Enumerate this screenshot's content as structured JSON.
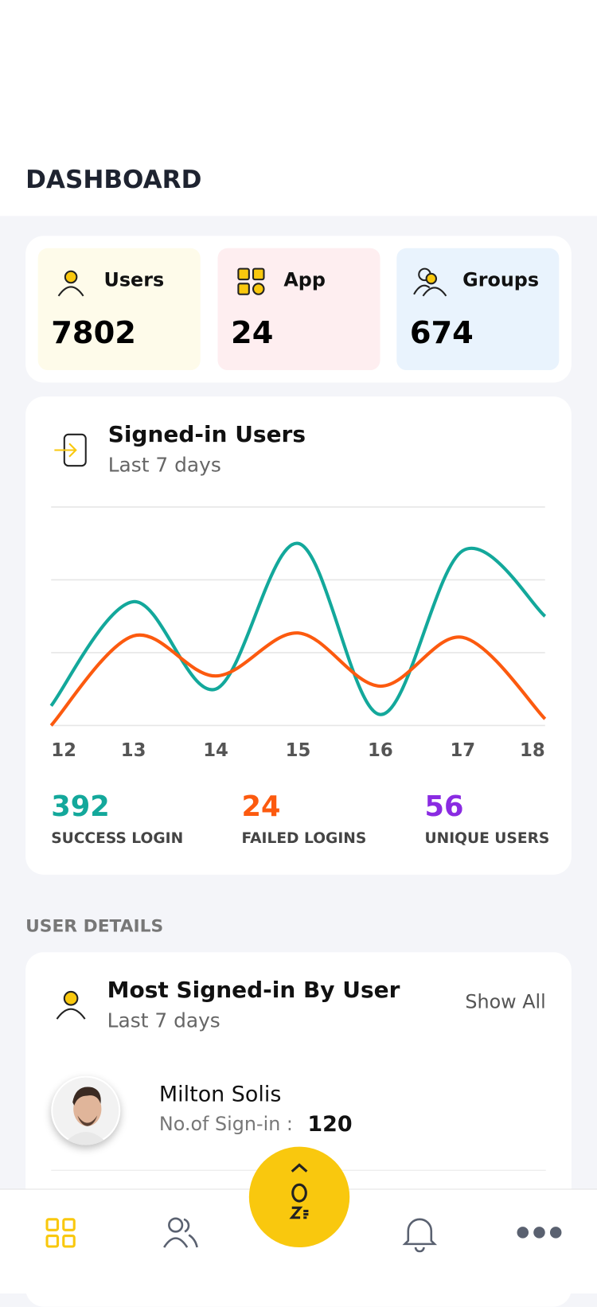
{
  "header": {
    "title": "DASHBOARD"
  },
  "stats": [
    {
      "label": "Users",
      "value": 7802
    },
    {
      "label": "App",
      "value": 24
    },
    {
      "label": "Groups",
      "value": 674
    }
  ],
  "chart_data": {
    "type": "line",
    "title": "Signed-in Users",
    "subtitle": "Last 7 days",
    "categories": [
      "12",
      "13",
      "14",
      "15",
      "16",
      "17",
      "18"
    ],
    "series": [
      {
        "color": "#13a89b",
        "values": [
          0.27,
          1.7,
          0.5,
          2.5,
          0.15,
          2.4,
          1.5
        ]
      },
      {
        "color": "#fc5a0f",
        "values": [
          0,
          1.23,
          0.68,
          1.27,
          0.54,
          1.21,
          0.09
        ]
      }
    ],
    "ylim": [
      0,
      3
    ],
    "yticks": [
      0,
      1,
      2,
      3
    ],
    "grid": true
  },
  "summary": [
    {
      "value": 392,
      "label": "SUCCESS LOGIN",
      "color": "#13a89b"
    },
    {
      "value": 24,
      "label": "FAILED LOGINS",
      "color": "#fc5a0f"
    },
    {
      "value": 56,
      "label": "UNIQUE USERS",
      "color": "#8a2be2"
    }
  ],
  "user_details": {
    "section": "USER DETAILS",
    "title": "Most Signed-in By User",
    "subtitle": "Last 7 days",
    "action": "Show All",
    "users": [
      {
        "name": "Milton Solis",
        "count_label": "No.of Sign-in :",
        "count": 120
      }
    ]
  }
}
